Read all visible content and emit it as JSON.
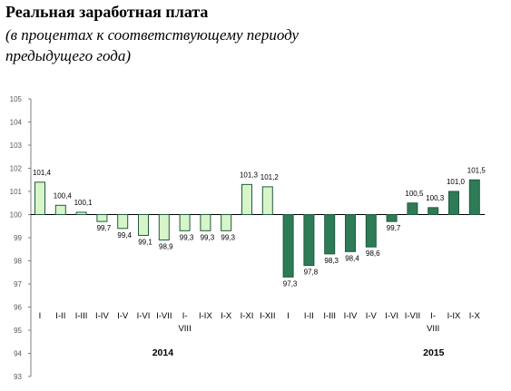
{
  "chart_data": {
    "type": "bar",
    "title": "Реальная заработная плата",
    "subtitle": "(в процентах к соответствующему периоду предыдущего года)",
    "ylim": [
      93,
      105
    ],
    "yticks": [
      93,
      94,
      95,
      96,
      97,
      98,
      99,
      100,
      101,
      102,
      103,
      104,
      105
    ],
    "baseline": 100,
    "grid": false,
    "categories": [
      "I",
      "I-II",
      "I-III",
      "I-IV",
      "I-V",
      "I-VI",
      "I-VII",
      "I-VIII",
      "I-IX",
      "I-X",
      "I-XI",
      "I-XII",
      "I",
      "I-II",
      "I-III",
      "I-IV",
      "I-V",
      "I-VI",
      "I-VII",
      "I-VIII",
      "I-IX",
      "I-X"
    ],
    "category_lines": [
      [
        "I"
      ],
      [
        "I-II"
      ],
      [
        "I-III"
      ],
      [
        "I-IV"
      ],
      [
        "I-V"
      ],
      [
        "I-VI"
      ],
      [
        "I-VII"
      ],
      [
        "I-",
        "VIII"
      ],
      [
        "I-IX"
      ],
      [
        "I-X"
      ],
      [
        "I-XI"
      ],
      [
        "I-XII"
      ],
      [
        "I"
      ],
      [
        "I-II"
      ],
      [
        "I-III"
      ],
      [
        "I-IV"
      ],
      [
        "I-V"
      ],
      [
        "I-VI"
      ],
      [
        "I-VII"
      ],
      [
        "I-",
        "VIII"
      ],
      [
        "I-IX"
      ],
      [
        "I-X"
      ]
    ],
    "values": [
      101.4,
      100.4,
      100.1,
      99.7,
      99.4,
      99.1,
      98.9,
      99.3,
      99.3,
      99.3,
      101.3,
      101.2,
      97.3,
      97.8,
      98.3,
      98.4,
      98.6,
      99.7,
      100.5,
      100.3,
      101.0,
      101.5
    ],
    "value_labels": [
      "101,4",
      "100,4",
      "100,1",
      "99,7",
      "99,4",
      "99,1",
      "98,9",
      "99,3",
      "99,3",
      "99,3",
      "101,3",
      "101,2",
      "97,3",
      "97,8",
      "98,3",
      "98,4",
      "98,6",
      "99,7",
      "100,5",
      "100,3",
      "101,0",
      "101,5"
    ],
    "groups": [
      {
        "name": "2014",
        "start": 0,
        "end": 11,
        "color": "#d7f5c8"
      },
      {
        "name": "2015",
        "start": 12,
        "end": 21,
        "color": "#2e7b57"
      }
    ],
    "border_color": "#1f5a3c"
  }
}
